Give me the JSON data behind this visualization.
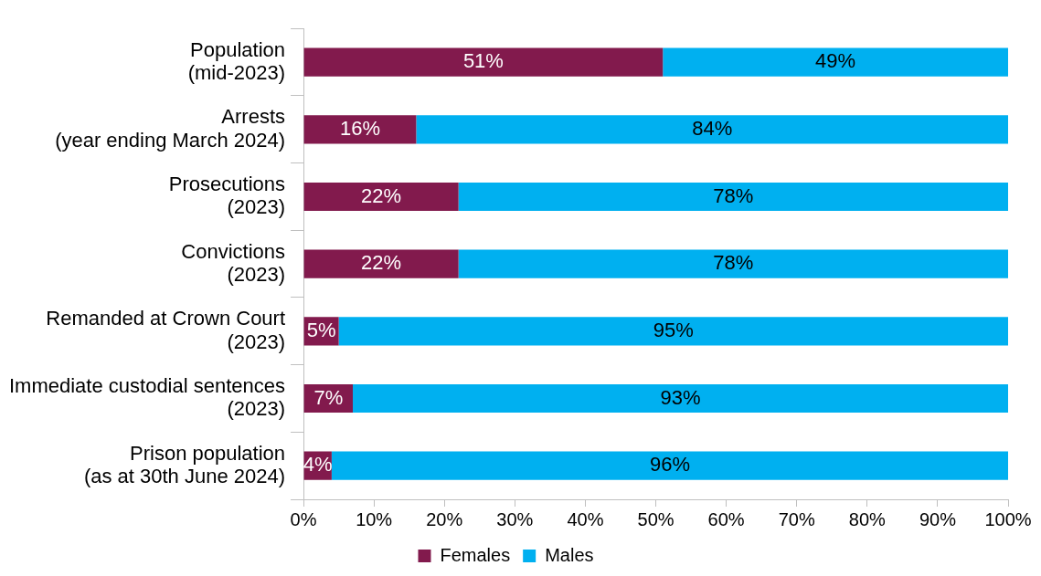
{
  "chart_data": {
    "type": "bar",
    "orientation": "horizontal",
    "stacked": true,
    "categories": [
      "Population\n(mid-2023)",
      "Arrests\n(year ending March 2024)",
      "Prosecutions\n(2023)",
      "Convictions\n(2023)",
      "Remanded at Crown Court\n(2023)",
      "Immediate custodial sentences\n(2023)",
      "Prison population\n(as at 30th June 2024)"
    ],
    "series": [
      {
        "name": "Females",
        "color": "#821a4d",
        "values": [
          51,
          16,
          22,
          22,
          5,
          7,
          4
        ],
        "value_labels": [
          "51%",
          "16%",
          "22%",
          "22%",
          "5%",
          "7%",
          "4%"
        ]
      },
      {
        "name": "Males",
        "color": "#00b0f0",
        "values": [
          49,
          84,
          78,
          78,
          95,
          93,
          96
        ],
        "value_labels": [
          "49%",
          "84%",
          "78%",
          "78%",
          "95%",
          "93%",
          "96%"
        ]
      }
    ],
    "xlim": [
      0,
      100
    ],
    "xticks": [
      {
        "value": 0,
        "label": "0%"
      },
      {
        "value": 10,
        "label": "10%"
      },
      {
        "value": 20,
        "label": "20%"
      },
      {
        "value": 30,
        "label": "30%"
      },
      {
        "value": 40,
        "label": "40%"
      },
      {
        "value": 50,
        "label": "50%"
      },
      {
        "value": 60,
        "label": "60%"
      },
      {
        "value": 70,
        "label": "70%"
      },
      {
        "value": 80,
        "label": "80%"
      },
      {
        "value": 90,
        "label": "90%"
      },
      {
        "value": 100,
        "label": "100%"
      }
    ],
    "grid": false,
    "legend": "bottom"
  }
}
